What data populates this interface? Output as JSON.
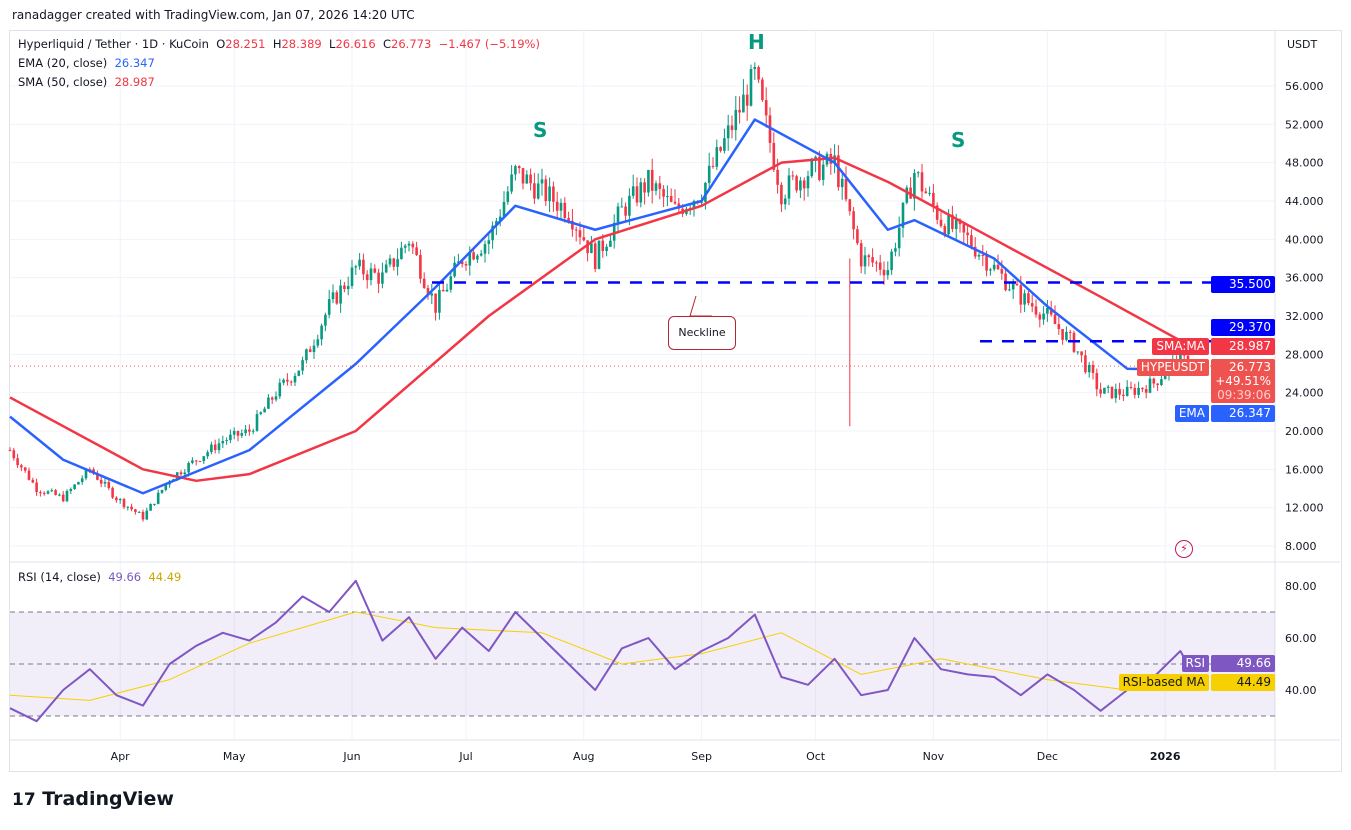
{
  "credit": "ranadagger created with TradingView.com, Jan 07, 2026 14:20 UTC",
  "legend": {
    "symbol": "Hyperliquid / Tether · 1D · KuCoin",
    "o_label": "O",
    "o": "28.251",
    "h_label": "H",
    "h": "28.389",
    "l_label": "L",
    "l": "26.616",
    "c_label": "C",
    "c": "26.773",
    "change": "−1.467 (−5.19%)",
    "ema_label": "EMA (20, close)",
    "ema": "26.347",
    "sma_label": "SMA (50, close)",
    "sma": "28.987",
    "rsi_label": "RSI (14, close)",
    "rsi": "49.66",
    "rsi_ma": "44.49"
  },
  "currency": "USDT",
  "tags": {
    "level1": "35.500",
    "level2": "29.370",
    "sma_name": "SMA:MA",
    "sma_val": "28.987",
    "sym": "HYPEUSDT",
    "price": "26.773",
    "pct": "+49.51%",
    "timer": "09:39:06",
    "ema_name": "EMA",
    "ema_val": "26.347",
    "rsi_name": "RSI",
    "rsi_val": "49.66",
    "rsima_name": "RSI-based MA",
    "rsima_val": "44.49"
  },
  "annotations": {
    "s1": "S",
    "h": "H",
    "s2": "S",
    "neckline": "Neckline"
  },
  "logo": "TradingView",
  "colors": {
    "up": "#089981",
    "down": "#f23645",
    "ema": "#2962ff",
    "sma": "#f23645",
    "level": "#0000ff",
    "rsi": "#7e57c2",
    "rsi_ma": "#f7d000"
  },
  "chart_data": {
    "type": "candlestick",
    "price_ticks": [
      "56.000",
      "52.000",
      "48.000",
      "44.000",
      "40.000",
      "36.000",
      "32.000",
      "28.000",
      "24.000",
      "20.000",
      "16.000",
      "12.000",
      "8.000"
    ],
    "time_ticks": [
      "Apr",
      "May",
      "Jun",
      "Jul",
      "Aug",
      "Sep",
      "Oct",
      "Nov",
      "Dec",
      "2026"
    ],
    "rsi_ticks": [
      "80.00",
      "60.00",
      "40.00"
    ],
    "horizontal_levels": [
      35.5,
      29.37
    ],
    "weekly_close": [
      [
        "2025-03-03",
        18
      ],
      [
        "2025-03-10",
        14
      ],
      [
        "2025-03-17",
        13
      ],
      [
        "2025-03-24",
        16
      ],
      [
        "2025-03-31",
        13
      ],
      [
        "2025-04-07",
        11
      ],
      [
        "2025-04-14",
        15
      ],
      [
        "2025-04-21",
        17
      ],
      [
        "2025-04-28",
        19
      ],
      [
        "2025-05-05",
        20
      ],
      [
        "2025-05-12",
        24
      ],
      [
        "2025-05-19",
        27
      ],
      [
        "2025-05-26",
        33
      ],
      [
        "2025-06-02",
        37
      ],
      [
        "2025-06-09",
        36
      ],
      [
        "2025-06-16",
        40
      ],
      [
        "2025-06-23",
        33
      ],
      [
        "2025-06-30",
        38
      ],
      [
        "2025-07-07",
        40
      ],
      [
        "2025-07-14",
        47
      ],
      [
        "2025-07-21",
        45
      ],
      [
        "2025-07-28",
        43
      ],
      [
        "2025-08-04",
        38
      ],
      [
        "2025-08-11",
        43
      ],
      [
        "2025-08-18",
        46
      ],
      [
        "2025-08-25",
        43
      ],
      [
        "2025-09-01",
        45
      ],
      [
        "2025-09-08",
        51
      ],
      [
        "2025-09-15",
        57
      ],
      [
        "2025-09-22",
        45
      ],
      [
        "2025-09-29",
        47
      ],
      [
        "2025-10-06",
        48
      ],
      [
        "2025-10-13",
        38
      ],
      [
        "2025-10-20",
        37
      ],
      [
        "2025-10-27",
        47
      ],
      [
        "2025-11-03",
        42
      ],
      [
        "2025-11-10",
        40
      ],
      [
        "2025-11-17",
        37
      ],
      [
        "2025-11-24",
        34
      ],
      [
        "2025-12-01",
        32
      ],
      [
        "2025-12-08",
        29
      ],
      [
        "2025-12-15",
        24
      ],
      [
        "2025-12-22",
        24
      ],
      [
        "2025-12-29",
        25
      ],
      [
        "2026-01-05",
        27.8
      ],
      [
        "2026-01-07",
        26.773
      ]
    ],
    "ema20": [
      [
        "2025-03-03",
        21.5
      ],
      [
        "2025-03-17",
        17
      ],
      [
        "2025-04-07",
        13.5
      ],
      [
        "2025-05-05",
        18
      ],
      [
        "2025-06-02",
        27
      ],
      [
        "2025-06-23",
        35
      ],
      [
        "2025-07-14",
        43.5
      ],
      [
        "2025-08-04",
        41
      ],
      [
        "2025-09-01",
        44
      ],
      [
        "2025-09-15",
        52.5
      ],
      [
        "2025-10-06",
        48
      ],
      [
        "2025-10-20",
        41
      ],
      [
        "2025-10-27",
        42
      ],
      [
        "2025-11-17",
        38
      ],
      [
        "2025-12-01",
        33
      ],
      [
        "2025-12-22",
        26.5
      ],
      [
        "2026-01-07",
        26.347
      ]
    ],
    "sma50": [
      [
        "2025-03-03",
        23.5
      ],
      [
        "2025-04-07",
        16
      ],
      [
        "2025-04-21",
        14.8
      ],
      [
        "2025-05-05",
        15.5
      ],
      [
        "2025-06-02",
        20
      ],
      [
        "2025-07-07",
        32
      ],
      [
        "2025-08-04",
        40
      ],
      [
        "2025-09-01",
        43.5
      ],
      [
        "2025-09-22",
        48
      ],
      [
        "2025-10-06",
        48.5
      ],
      [
        "2025-10-20",
        46
      ],
      [
        "2025-11-17",
        40
      ],
      [
        "2025-12-15",
        34
      ],
      [
        "2026-01-07",
        28.987
      ]
    ],
    "rsi": [
      [
        "2025-03-03",
        33
      ],
      [
        "2025-03-10",
        28
      ],
      [
        "2025-03-17",
        40
      ],
      [
        "2025-03-24",
        48
      ],
      [
        "2025-03-31",
        38
      ],
      [
        "2025-04-07",
        34
      ],
      [
        "2025-04-14",
        50
      ],
      [
        "2025-04-21",
        57
      ],
      [
        "2025-04-28",
        62
      ],
      [
        "2025-05-05",
        59
      ],
      [
        "2025-05-12",
        66
      ],
      [
        "2025-05-19",
        76
      ],
      [
        "2025-05-26",
        70
      ],
      [
        "2025-06-02",
        82
      ],
      [
        "2025-06-09",
        59
      ],
      [
        "2025-06-16",
        68
      ],
      [
        "2025-06-23",
        52
      ],
      [
        "2025-06-30",
        64
      ],
      [
        "2025-07-07",
        55
      ],
      [
        "2025-07-14",
        70
      ],
      [
        "2025-07-21",
        60
      ],
      [
        "2025-07-28",
        50
      ],
      [
        "2025-08-04",
        40
      ],
      [
        "2025-08-11",
        56
      ],
      [
        "2025-08-18",
        60
      ],
      [
        "2025-08-25",
        48
      ],
      [
        "2025-09-01",
        55
      ],
      [
        "2025-09-08",
        60
      ],
      [
        "2025-09-15",
        69
      ],
      [
        "2025-09-22",
        45
      ],
      [
        "2025-09-29",
        42
      ],
      [
        "2025-10-06",
        52
      ],
      [
        "2025-10-13",
        38
      ],
      [
        "2025-10-20",
        40
      ],
      [
        "2025-10-27",
        60
      ],
      [
        "2025-11-03",
        48
      ],
      [
        "2025-11-10",
        46
      ],
      [
        "2025-11-17",
        45
      ],
      [
        "2025-11-24",
        38
      ],
      [
        "2025-12-01",
        46
      ],
      [
        "2025-12-08",
        40
      ],
      [
        "2025-12-15",
        32
      ],
      [
        "2025-12-22",
        40
      ],
      [
        "2025-12-29",
        45
      ],
      [
        "2026-01-05",
        55
      ],
      [
        "2026-01-07",
        49.66
      ]
    ],
    "rsi_ma": [
      [
        "2025-03-03",
        38
      ],
      [
        "2025-03-24",
        36
      ],
      [
        "2025-04-14",
        44
      ],
      [
        "2025-05-05",
        58
      ],
      [
        "2025-06-02",
        70
      ],
      [
        "2025-06-23",
        64
      ],
      [
        "2025-07-21",
        62
      ],
      [
        "2025-08-11",
        50
      ],
      [
        "2025-09-01",
        54
      ],
      [
        "2025-09-22",
        62
      ],
      [
        "2025-10-13",
        46
      ],
      [
        "2025-11-03",
        52
      ],
      [
        "2025-12-01",
        44
      ],
      [
        "2025-12-22",
        40
      ],
      [
        "2026-01-07",
        44.49
      ]
    ]
  }
}
